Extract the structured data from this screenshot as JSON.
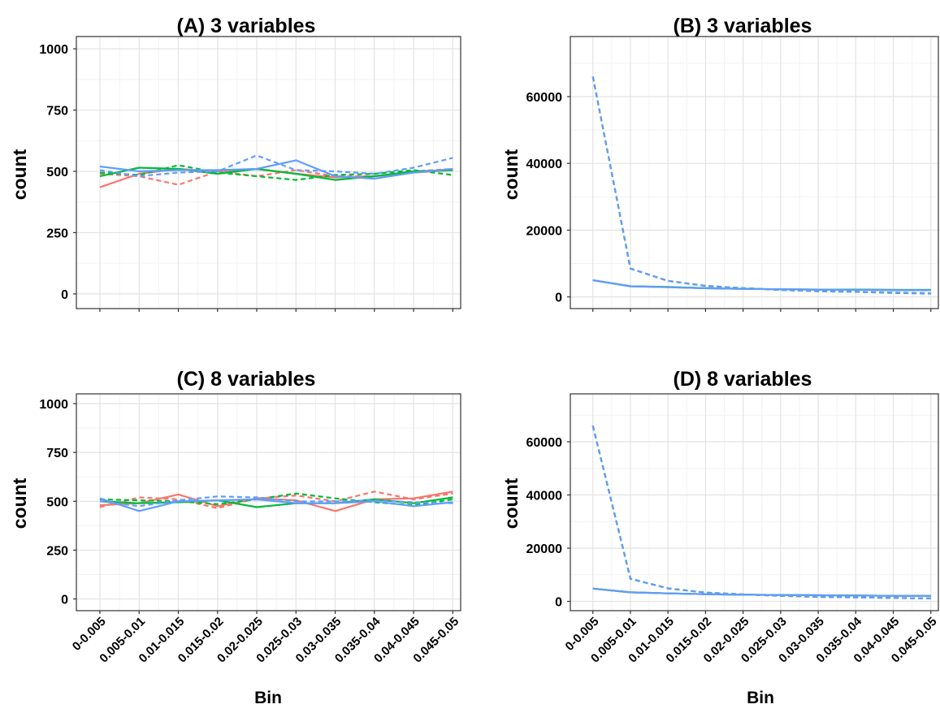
{
  "chart_data": [
    {
      "panel": "A",
      "type": "line",
      "title": "(A)    3 variables",
      "xlabel": "",
      "ylabel": "count",
      "ylim": [
        -60,
        1050
      ],
      "yticks": [
        "0",
        "250",
        "500",
        "750",
        "1000"
      ],
      "ytick_values": [
        0,
        250,
        500,
        750,
        1000
      ],
      "show_xticklabels": false,
      "grid": true,
      "categories": [
        "0-0.005",
        "0.005-0.01",
        "0.01-0.015",
        "0.015-0.02",
        "0.02-0.025",
        "0.025-0.03",
        "0.03-0.035",
        "0.035-0.04",
        "0.04-0.045",
        "0.045-0.05"
      ],
      "series": [
        {
          "color": "#F8766D",
          "dash": "solid",
          "values": [
            435,
            490,
            510,
            500,
            510,
            490,
            475,
            480,
            495,
            505
          ]
        },
        {
          "color": "#F8766D",
          "dash": "dashed",
          "values": [
            490,
            480,
            445,
            500,
            480,
            505,
            480,
            480,
            500,
            510
          ]
        },
        {
          "color": "#00BA38",
          "dash": "solid",
          "values": [
            480,
            515,
            510,
            490,
            510,
            490,
            465,
            480,
            500,
            505
          ]
        },
        {
          "color": "#00BA38",
          "dash": "dashed",
          "values": [
            495,
            485,
            525,
            495,
            480,
            465,
            485,
            490,
            505,
            485
          ]
        },
        {
          "color": "#619CFF",
          "dash": "solid",
          "values": [
            520,
            500,
            505,
            505,
            510,
            545,
            480,
            470,
            495,
            510
          ]
        },
        {
          "color": "#619CFF",
          "dash": "dashed",
          "values": [
            505,
            480,
            495,
            500,
            565,
            505,
            500,
            490,
            515,
            555
          ]
        }
      ]
    },
    {
      "panel": "B",
      "type": "line",
      "title": "(B)    3 variables",
      "xlabel": "",
      "ylabel": "count",
      "ylim": [
        -3500,
        78000
      ],
      "yticks": [
        "0",
        "20000",
        "40000",
        "60000"
      ],
      "ytick_values": [
        0,
        20000,
        40000,
        60000
      ],
      "show_xticklabels": false,
      "grid": true,
      "categories": [
        "0-0.005",
        "0.005-0.01",
        "0.01-0.015",
        "0.015-0.02",
        "0.02-0.025",
        "0.025-0.03",
        "0.03-0.035",
        "0.035-0.04",
        "0.04-0.045",
        "0.045-0.05"
      ],
      "series": [
        {
          "color": "#F8766D",
          "dash": "solid",
          "values": [
            5000,
            3200,
            2900,
            2600,
            2400,
            2300,
            2200,
            2200,
            2100,
            2100
          ]
        },
        {
          "color": "#F8766D",
          "dash": "dashed",
          "values": [
            66000,
            8500,
            4800,
            3300,
            2600,
            2100,
            1700,
            1500,
            1300,
            1100
          ]
        },
        {
          "color": "#00BA38",
          "dash": "solid",
          "values": [
            5000,
            3200,
            3000,
            2600,
            2400,
            2300,
            2200,
            2200,
            2100,
            2100
          ]
        },
        {
          "color": "#00BA38",
          "dash": "dashed",
          "values": [
            66000,
            8500,
            4800,
            3300,
            2600,
            2100,
            1700,
            1500,
            1200,
            1000
          ]
        },
        {
          "color": "#619CFF",
          "dash": "solid",
          "values": [
            5000,
            3200,
            2900,
            2600,
            2400,
            2300,
            2200,
            2100,
            2000,
            2000
          ]
        },
        {
          "color": "#619CFF",
          "dash": "dashed",
          "values": [
            66000,
            8500,
            4800,
            3300,
            2600,
            2100,
            1700,
            1500,
            1300,
            1100
          ]
        }
      ]
    },
    {
      "panel": "C",
      "type": "line",
      "title": "(C)    8 variables",
      "xlabel": "Bin",
      "ylabel": "count",
      "ylim": [
        -60,
        1050
      ],
      "yticks": [
        "0",
        "250",
        "500",
        "750",
        "1000"
      ],
      "ytick_values": [
        0,
        250,
        500,
        750,
        1000
      ],
      "show_xticklabels": true,
      "grid": true,
      "categories": [
        "0-0.005",
        "0.005-0.01",
        "0.01-0.015",
        "0.015-0.02",
        "0.02-0.025",
        "0.025-0.03",
        "0.03-0.035",
        "0.035-0.04",
        "0.04-0.045",
        "0.045-0.05"
      ],
      "series": [
        {
          "color": "#F8766D",
          "dash": "solid",
          "values": [
            480,
            490,
            535,
            475,
            515,
            505,
            450,
            510,
            515,
            550
          ]
        },
        {
          "color": "#F8766D",
          "dash": "dashed",
          "values": [
            470,
            520,
            510,
            465,
            515,
            530,
            500,
            550,
            510,
            540
          ]
        },
        {
          "color": "#00BA38",
          "dash": "solid",
          "values": [
            500,
            490,
            495,
            505,
            470,
            490,
            490,
            510,
            490,
            520
          ]
        },
        {
          "color": "#00BA38",
          "dash": "dashed",
          "values": [
            510,
            505,
            500,
            485,
            510,
            540,
            515,
            495,
            480,
            510
          ]
        },
        {
          "color": "#619CFF",
          "dash": "solid",
          "values": [
            515,
            450,
            500,
            505,
            510,
            490,
            490,
            500,
            475,
            495
          ]
        },
        {
          "color": "#619CFF",
          "dash": "dashed",
          "values": [
            500,
            475,
            505,
            525,
            520,
            500,
            500,
            505,
            495,
            490
          ]
        }
      ]
    },
    {
      "panel": "D",
      "type": "line",
      "title": "(D)    8 variables",
      "xlabel": "Bin",
      "ylabel": "count",
      "ylim": [
        -3500,
        78000
      ],
      "yticks": [
        "0",
        "20000",
        "40000",
        "60000"
      ],
      "ytick_values": [
        0,
        20000,
        40000,
        60000
      ],
      "show_xticklabels": true,
      "grid": true,
      "categories": [
        "0-0.005",
        "0.005-0.01",
        "0.01-0.015",
        "0.015-0.02",
        "0.02-0.025",
        "0.025-0.03",
        "0.03-0.035",
        "0.035-0.04",
        "0.04-0.045",
        "0.045-0.05"
      ],
      "series": [
        {
          "color": "#F8766D",
          "dash": "solid",
          "values": [
            4800,
            3400,
            3000,
            2700,
            2500,
            2400,
            2300,
            2200,
            2100,
            2100
          ]
        },
        {
          "color": "#F8766D",
          "dash": "dashed",
          "values": [
            66000,
            8500,
            4900,
            3300,
            2600,
            2100,
            1700,
            1500,
            1300,
            1100
          ]
        },
        {
          "color": "#00BA38",
          "dash": "solid",
          "values": [
            4800,
            3400,
            3000,
            2700,
            2500,
            2400,
            2300,
            2200,
            2100,
            2100
          ]
        },
        {
          "color": "#00BA38",
          "dash": "dashed",
          "values": [
            66000,
            8500,
            4900,
            3300,
            2600,
            2100,
            1700,
            1500,
            1300,
            1100
          ]
        },
        {
          "color": "#619CFF",
          "dash": "solid",
          "values": [
            4800,
            3400,
            3000,
            2700,
            2500,
            2400,
            2300,
            2200,
            2100,
            2100
          ]
        },
        {
          "color": "#619CFF",
          "dash": "dashed",
          "values": [
            66000,
            8500,
            4900,
            3300,
            2600,
            2100,
            1700,
            1500,
            1300,
            1100
          ]
        }
      ]
    }
  ]
}
